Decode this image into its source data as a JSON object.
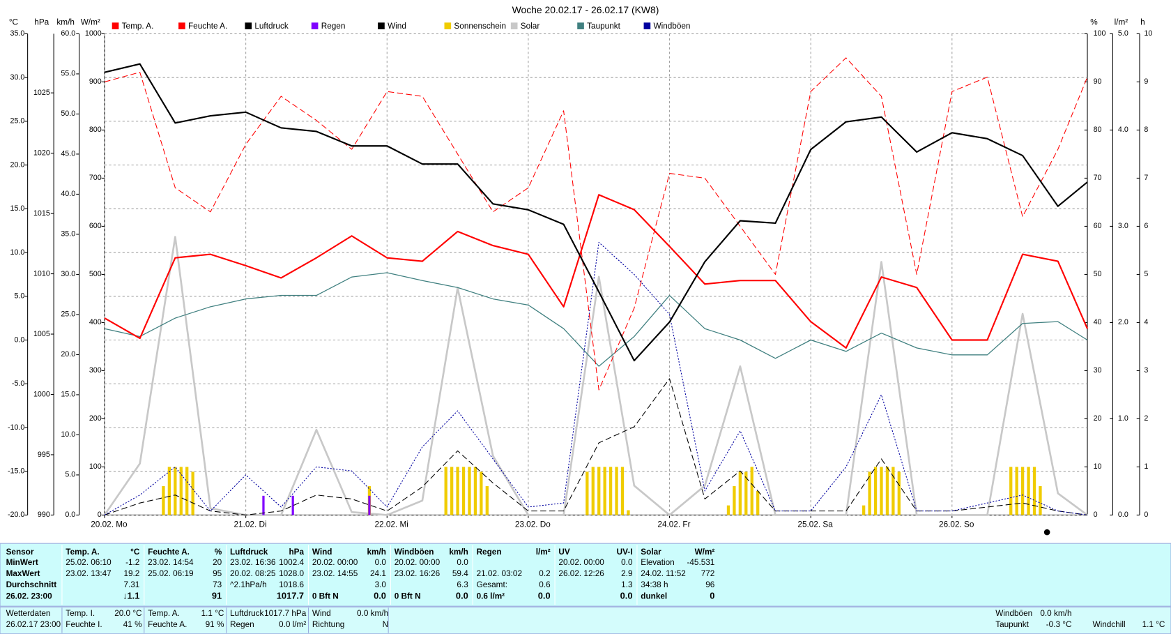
{
  "chart_data": {
    "type": "line",
    "title": "Woche 20.02.17 - 26.02.17 (KW8)",
    "ylabel": "°C",
    "y2label": "hPa",
    "y3label": "km/h",
    "y4label": "W/m²",
    "y5label": "%",
    "y6label": "l/m²",
    "y7label": "h",
    "xlim": [
      0,
      167
    ],
    "xticks": [
      {
        "value": 0,
        "label": "20.02. Mo"
      },
      {
        "value": 24,
        "label": "21.02. Di"
      },
      {
        "value": 48,
        "label": "22.02. Mi"
      },
      {
        "value": 72,
        "label": "23.02. Do"
      },
      {
        "value": 96,
        "label": "24.02. Fr"
      },
      {
        "value": 120,
        "label": "25.02. Sa"
      },
      {
        "value": 144,
        "label": "26.02. So"
      }
    ],
    "x": [
      0,
      6,
      12,
      18,
      24,
      30,
      36,
      42,
      48,
      54,
      60,
      66,
      72,
      78,
      84,
      90,
      96,
      102,
      108,
      114,
      120,
      126,
      132,
      138,
      144,
      150,
      156,
      162,
      167
    ],
    "ylim": [
      -20,
      35
    ],
    "yticks": [
      {
        "value": -20,
        "label": "-20.0"
      },
      {
        "value": -15,
        "label": "-15.0"
      },
      {
        "value": -10,
        "label": "-10.0"
      },
      {
        "value": -5,
        "label": "-5.0"
      },
      {
        "value": 0,
        "label": "0.0"
      },
      {
        "value": 5,
        "label": "5.0"
      },
      {
        "value": 10,
        "label": "10.0"
      },
      {
        "value": 15,
        "label": "15.0"
      },
      {
        "value": 20,
        "label": "20.0"
      },
      {
        "value": 25,
        "label": "25.0"
      },
      {
        "value": 30,
        "label": "30.0"
      },
      {
        "value": 35,
        "label": "35.0"
      }
    ],
    "y2lim": [
      990,
      1029.9
    ],
    "y2ticks": [
      990,
      995,
      1000,
      1005,
      1010,
      1015,
      1020,
      1025
    ],
    "y3lim": [
      0,
      60
    ],
    "y3ticks": [
      {
        "value": 0,
        "label": "0.0"
      },
      {
        "value": 5,
        "label": "5.0"
      },
      {
        "value": 10,
        "label": "10.0"
      },
      {
        "value": 15,
        "label": "15.0"
      },
      {
        "value": 20,
        "label": "20.0"
      },
      {
        "value": 25,
        "label": "25.0"
      },
      {
        "value": 30,
        "label": "30.0"
      },
      {
        "value": 35,
        "label": "35.0"
      },
      {
        "value": 40,
        "label": "40.0"
      },
      {
        "value": 45,
        "label": "45.0"
      },
      {
        "value": 50,
        "label": "50.0"
      },
      {
        "value": 55,
        "label": "55.0"
      },
      {
        "value": 60,
        "label": "60.0"
      }
    ],
    "y4lim": [
      0,
      1000
    ],
    "y4ticks": [
      0,
      100,
      200,
      300,
      400,
      500,
      600,
      700,
      800,
      900,
      1000
    ],
    "y5lim": [
      0,
      100
    ],
    "y5ticks": [
      0,
      10,
      20,
      30,
      40,
      50,
      60,
      70,
      80,
      90,
      100
    ],
    "y6lim": [
      0,
      5
    ],
    "y6ticks": [
      {
        "value": 0,
        "label": "0.0"
      },
      {
        "value": 1,
        "label": "1.0"
      },
      {
        "value": 2,
        "label": "2.0"
      },
      {
        "value": 3,
        "label": "3.0"
      },
      {
        "value": 4,
        "label": "4.0"
      },
      {
        "value": 5,
        "label": "5.0"
      }
    ],
    "y7lim": [
      0,
      10
    ],
    "y7ticks": [
      0,
      1,
      2,
      3,
      4,
      5,
      6,
      7,
      8,
      9,
      10
    ],
    "grid": true,
    "series": [
      {
        "name": "Temp. A.",
        "color": "#ff0000",
        "axis": "y",
        "width": 2,
        "values": [
          2.5,
          0.2,
          9.4,
          9.8,
          8.5,
          7.1,
          9.4,
          11.9,
          9.4,
          9.0,
          12.4,
          10.8,
          9.8,
          3.8,
          16.6,
          14.9,
          10.7,
          6.4,
          6.8,
          6.8,
          2.1,
          -0.9,
          7.2,
          6.0,
          0.0,
          0.0,
          9.8,
          9.0,
          1.3
        ]
      },
      {
        "name": "Feuchte A.",
        "color": "#ff0000",
        "axis": "y5",
        "width": 1,
        "dash": "8 4",
        "values": [
          90,
          92,
          68,
          63,
          77,
          87,
          82,
          76,
          88,
          87,
          75,
          63,
          68,
          84,
          26,
          43,
          71,
          70,
          60,
          50,
          88,
          95,
          87,
          50,
          88,
          91,
          62,
          76,
          91
        ]
      },
      {
        "name": "Luftdruck",
        "color": "#000000",
        "axis": "y2",
        "width": 2,
        "values": [
          1026.7,
          1027.4,
          1022.5,
          1023.1,
          1023.4,
          1022.1,
          1021.8,
          1020.6,
          1020.6,
          1019.1,
          1019.1,
          1015.8,
          1015.3,
          1014.1,
          1008.5,
          1002.8,
          1006.0,
          1011.0,
          1014.4,
          1014.2,
          1020.3,
          1022.6,
          1023.0,
          1020.1,
          1021.7,
          1021.2,
          1019.8,
          1015.6,
          1017.6
        ]
      },
      {
        "name": "Regen",
        "color": "#8000ff",
        "axis": "y6",
        "bars": true,
        "barwidth": 3,
        "x": [
          27,
          32,
          45
        ],
        "values": [
          0.2,
          0.2,
          0.2
        ]
      },
      {
        "name": "Wind",
        "color": "#000000",
        "axis": "y3",
        "width": 1,
        "dash": "8 4",
        "values": [
          0,
          1.5,
          2.5,
          0.5,
          0,
          0.5,
          2.5,
          2.0,
          0.5,
          3.5,
          8.0,
          4.0,
          0.5,
          0.5,
          9.0,
          11.0,
          17.0,
          2.0,
          5.5,
          0.5,
          0.5,
          0.5,
          7.0,
          0.5,
          0.5,
          1.0,
          1.5,
          0.5,
          0
        ]
      },
      {
        "name": "Sonnenschein",
        "color": "#f0cc00",
        "axis": "y7",
        "bars": true,
        "barwidth": 4,
        "x": [
          10,
          11,
          12,
          13,
          14,
          15,
          45,
          58,
          59,
          60,
          61,
          62,
          63,
          64,
          65,
          82,
          83,
          84,
          85,
          86,
          87,
          88,
          89,
          106,
          107,
          108,
          109,
          110,
          111,
          129,
          130,
          131,
          132,
          133,
          134,
          135,
          154,
          155,
          156,
          157,
          158,
          159
        ],
        "values": [
          0.6,
          1.0,
          1.0,
          1.0,
          1.0,
          0.9,
          0.6,
          1.0,
          1.0,
          1.0,
          1.0,
          1.0,
          1.0,
          0.9,
          0.6,
          0.9,
          1.0,
          1.0,
          1.0,
          1.0,
          1.0,
          1.0,
          0.1,
          0.2,
          0.6,
          0.9,
          0.9,
          1.0,
          0.5,
          0.2,
          0.9,
          1.0,
          1.0,
          1.0,
          1.0,
          0.9,
          1.0,
          1.0,
          1.0,
          1.0,
          1.0,
          0.6
        ]
      },
      {
        "name": "Solar",
        "color": "#c8c8c8",
        "axis": "y4",
        "width": 2.5,
        "values": [
          0,
          107,
          578,
          14,
          0,
          0,
          177,
          6,
          0,
          30,
          472,
          123,
          0,
          0,
          495,
          61,
          0,
          61,
          309,
          0,
          0,
          0,
          526,
          0,
          0,
          0,
          418,
          45,
          0
        ]
      },
      {
        "name": "Taupunkt",
        "color": "#408080",
        "axis": "y",
        "width": 1.2,
        "values": [
          1.3,
          0.4,
          2.5,
          3.8,
          4.7,
          5.1,
          5.1,
          7.2,
          7.7,
          6.8,
          6.0,
          4.7,
          4.0,
          1.3,
          -3.0,
          0.4,
          5.1,
          1.3,
          0.0,
          -2.1,
          0.0,
          -1.3,
          0.8,
          -0.9,
          -1.7,
          -1.7,
          1.9,
          2.1,
          0.0
        ]
      },
      {
        "name": "Windböen",
        "color": "#0000a0",
        "axis": "y3",
        "width": 1,
        "dash": "2 2",
        "values": [
          0,
          2.5,
          6.0,
          0.5,
          5.0,
          1.0,
          6.0,
          5.5,
          1.0,
          8.5,
          13.0,
          7.0,
          1.0,
          1.5,
          34.0,
          30.0,
          25.0,
          3.0,
          10.5,
          0.5,
          0.5,
          6.0,
          15.0,
          0.5,
          0.5,
          1.5,
          2.5,
          0.5,
          0
        ]
      }
    ]
  },
  "summary": {
    "panels": [
      {
        "name": "Sensor",
        "rows": [
          {
            "left": "MinWert"
          },
          {
            "left": "MaxWert"
          },
          {
            "left": "Durchschnitt"
          },
          {
            "left": "26.02. 23:00"
          }
        ]
      },
      {
        "name": "Temp. A.",
        "unit": "°C",
        "rows": [
          {
            "left": "25.02.  06:10",
            "right": "-1.2"
          },
          {
            "left": "23.02.  13:47",
            "right": "19.2"
          },
          {
            "right": "7.31"
          },
          {
            "right": "↓1.1"
          }
        ]
      },
      {
        "name": "Feuchte A.",
        "unit": "%",
        "rows": [
          {
            "left": "23.02.  14:54",
            "right": "20"
          },
          {
            "left": "25.02.  06:19",
            "right": "95"
          },
          {
            "right": "73"
          },
          {
            "right": "91"
          }
        ]
      },
      {
        "name": "Luftdruck",
        "unit": "hPa",
        "rows": [
          {
            "left": "23.02.  16:36",
            "right": "1002.4"
          },
          {
            "left": "20.02.  08:25",
            "right": "1028.0"
          },
          {
            "left": "^2.1hPa/h",
            "right": "1018.6"
          },
          {
            "right": "1017.7"
          }
        ]
      },
      {
        "name": "Wind",
        "unit": "km/h",
        "rows": [
          {
            "left": "20.02.  00:00",
            "right": "0.0"
          },
          {
            "left": "23.02.  14:55",
            "right": "24.1"
          },
          {
            "right": "3.0"
          },
          {
            "left": "0 Bft N",
            "right": "0.0"
          }
        ]
      },
      {
        "name": "Windböen",
        "unit": "km/h",
        "rows": [
          {
            "left": "20.02.  00:00",
            "right": "0.0"
          },
          {
            "left": "23.02.  16:26",
            "right": "59.4"
          },
          {
            "right": "6.3"
          },
          {
            "left": "0 Bft N",
            "right": "0.0"
          }
        ]
      },
      {
        "name": "Regen",
        "unit": "l/m²",
        "rows": [
          null,
          {
            "left": "21.02.  03:02",
            "right": "0.2"
          },
          {
            "left": "Gesamt:",
            "right": "0.6"
          },
          {
            "left": "0.6 l/m²",
            "right": "0.0"
          }
        ]
      },
      {
        "name": "UV",
        "unit": "UV-I",
        "rows": [
          {
            "left": "20.02.  00:00",
            "right": "0.0"
          },
          {
            "left": "26.02.  12:26",
            "right": "2.9"
          },
          {
            "right": "1.3"
          },
          {
            "right": "0.0"
          }
        ]
      },
      {
        "name": "Solar",
        "unit": "W/m²",
        "rows": [
          {
            "left": "Elevation",
            "right": "-45.531"
          },
          {
            "left": "24.02.  11:52",
            "right": "772"
          },
          {
            "left": "34:38 h",
            "right": "96"
          },
          {
            "left": "dunkel",
            "right": "0"
          }
        ]
      }
    ],
    "current": [
      {
        "rows": [
          {
            "left": "Wetterdaten"
          },
          {
            "left": "26.02.17 23:00"
          }
        ]
      },
      {
        "rows": [
          {
            "left": "Temp. I.",
            "right": "20.0 °C"
          },
          {
            "left": "Feuchte I.",
            "right": "41 %"
          }
        ]
      },
      {
        "rows": [
          {
            "left": "Temp. A.",
            "right": "1.1 °C"
          },
          {
            "left": "Feuchte A.",
            "right": "91 %"
          }
        ]
      },
      {
        "rows": [
          {
            "left": "Luftdruck",
            "right": "1017.7 hPa"
          },
          {
            "left": "Regen",
            "right": "0.0 l/m²"
          }
        ]
      },
      {
        "rows": [
          {
            "left": "Wind",
            "right": "0.0 km/h"
          },
          {
            "left": "Richtung",
            "right": "N"
          }
        ]
      },
      {
        "rows": [
          {
            "left": "Windböen",
            "right": "0.0 km/h"
          },
          {
            "left": "Taupunkt",
            "right": "-0.3 °C"
          }
        ]
      },
      {
        "rows": [
          null,
          {
            "left": "Windchill",
            "right": "1.1 °C"
          }
        ]
      }
    ]
  }
}
